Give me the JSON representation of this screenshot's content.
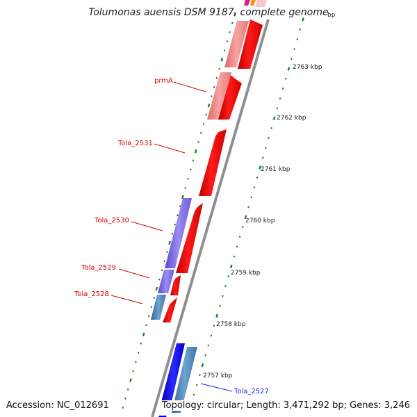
{
  "title": "Tolumonas auensis DSM 9187, complete genome",
  "accession": "Accession: NC_012691",
  "topology": "Topology: circular; Length: 3,471,292 bp; Genes: 3,246",
  "colors": {
    "backbone": "#8a8a8a",
    "tick_green": "#1e7f1e",
    "gene_red": "#ff0000",
    "gene_pink": "#f08080",
    "gene_purple": "#7b68ee",
    "gene_steelblue": "#4682b4",
    "gene_blue": "#0000ff",
    "label_red": "#d40000",
    "label_blue": "#1a1aff"
  },
  "ruler_labels": [
    {
      "id": "kbp-2764",
      "text": "bp"
    },
    {
      "id": "kbp-2763",
      "text": "2763 kbp"
    },
    {
      "id": "kbp-2762",
      "text": "2762 kbp"
    },
    {
      "id": "kbp-2761",
      "text": "2761 kbp"
    },
    {
      "id": "kbp-2760",
      "text": "2760 kbp"
    },
    {
      "id": "kbp-2759",
      "text": "2759 kbp"
    },
    {
      "id": "kbp-2758",
      "text": "2758 kbp"
    },
    {
      "id": "kbp-2757",
      "text": "2757 kbp"
    }
  ],
  "gene_labels": [
    {
      "id": "prmA",
      "text": "prmA",
      "color": "#d40000"
    },
    {
      "id": "Tola_2531",
      "text": "Tola_2531",
      "color": "#d40000"
    },
    {
      "id": "Tola_2530",
      "text": "Tola_2530",
      "color": "#d40000"
    },
    {
      "id": "Tola_2529",
      "text": "Tola_2529",
      "color": "#d40000"
    },
    {
      "id": "Tola_2528",
      "text": "Tola_2528",
      "color": "#d40000"
    },
    {
      "id": "Tola_2527",
      "text": "Tola_2527",
      "color": "#1a1aff"
    }
  ]
}
